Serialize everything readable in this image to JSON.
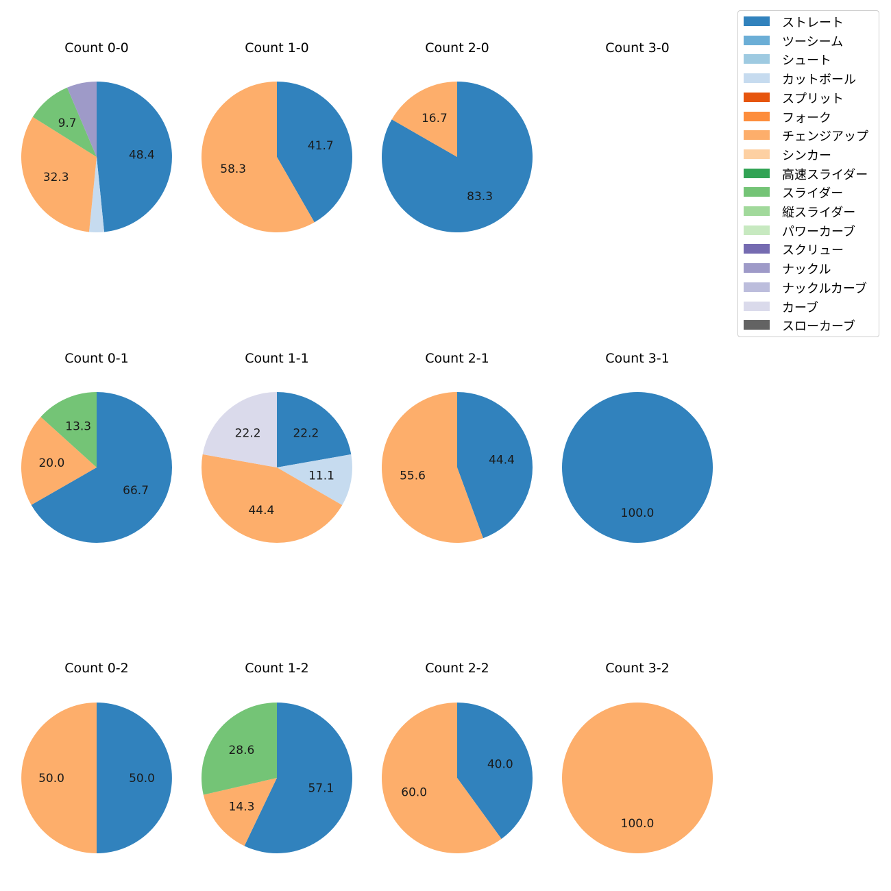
{
  "chart_data": {
    "type": "pie",
    "legend": {
      "placement": "top-right",
      "entries": [
        {
          "name": "ストレート",
          "color": "#3182bd"
        },
        {
          "name": "ツーシーム",
          "color": "#6baed6"
        },
        {
          "name": "シュート",
          "color": "#9ecae1"
        },
        {
          "name": "カットボール",
          "color": "#c6dbef"
        },
        {
          "name": "スプリット",
          "color": "#e6550d"
        },
        {
          "name": "フォーク",
          "color": "#fd8d3c"
        },
        {
          "name": "チェンジアップ",
          "color": "#fdae6b"
        },
        {
          "name": "シンカー",
          "color": "#fdd0a2"
        },
        {
          "name": "高速スライダー",
          "color": "#31a354"
        },
        {
          "name": "スライダー",
          "color": "#74c476"
        },
        {
          "name": "縦スライダー",
          "color": "#a1d99b"
        },
        {
          "name": "パワーカーブ",
          "color": "#c7e9c0"
        },
        {
          "name": "スクリュー",
          "color": "#756bb1"
        },
        {
          "name": "ナックル",
          "color": "#9e9ac8"
        },
        {
          "name": "ナックルカーブ",
          "color": "#bcbddc"
        },
        {
          "name": "カーブ",
          "color": "#dadaeb"
        },
        {
          "name": "スローカーブ",
          "color": "#636363"
        }
      ]
    },
    "charts": [
      {
        "title": "Count 0-0",
        "slices": [
          {
            "pitch": "ストレート",
            "value": 48.4,
            "label": "48.4"
          },
          {
            "pitch": "カットボール",
            "value": 3.2,
            "label": ""
          },
          {
            "pitch": "チェンジアップ",
            "value": 32.3,
            "label": "32.3"
          },
          {
            "pitch": "スライダー",
            "value": 9.7,
            "label": "9.7"
          },
          {
            "pitch": "ナックル",
            "value": 6.4,
            "label": ""
          }
        ]
      },
      {
        "title": "Count 1-0",
        "slices": [
          {
            "pitch": "ストレート",
            "value": 41.7,
            "label": "41.7"
          },
          {
            "pitch": "チェンジアップ",
            "value": 58.3,
            "label": "58.3"
          }
        ]
      },
      {
        "title": "Count 2-0",
        "slices": [
          {
            "pitch": "ストレート",
            "value": 83.3,
            "label": "83.3"
          },
          {
            "pitch": "チェンジアップ",
            "value": 16.7,
            "label": "16.7"
          }
        ]
      },
      {
        "title": "Count 3-0",
        "slices": []
      },
      {
        "title": "Count 0-1",
        "slices": [
          {
            "pitch": "ストレート",
            "value": 66.7,
            "label": "66.7"
          },
          {
            "pitch": "チェンジアップ",
            "value": 20.0,
            "label": "20.0"
          },
          {
            "pitch": "スライダー",
            "value": 13.3,
            "label": "13.3"
          }
        ]
      },
      {
        "title": "Count 1-1",
        "slices": [
          {
            "pitch": "ストレート",
            "value": 22.2,
            "label": "22.2"
          },
          {
            "pitch": "カットボール",
            "value": 11.1,
            "label": "11.1"
          },
          {
            "pitch": "チェンジアップ",
            "value": 44.4,
            "label": "44.4"
          },
          {
            "pitch": "カーブ",
            "value": 22.2,
            "label": "22.2"
          }
        ]
      },
      {
        "title": "Count 2-1",
        "slices": [
          {
            "pitch": "ストレート",
            "value": 44.4,
            "label": "44.4"
          },
          {
            "pitch": "チェンジアップ",
            "value": 55.6,
            "label": "55.6"
          }
        ]
      },
      {
        "title": "Count 3-1",
        "slices": [
          {
            "pitch": "ストレート",
            "value": 100.0,
            "label": "100.0"
          }
        ]
      },
      {
        "title": "Count 0-2",
        "slices": [
          {
            "pitch": "ストレート",
            "value": 50.0,
            "label": "50.0"
          },
          {
            "pitch": "チェンジアップ",
            "value": 50.0,
            "label": "50.0"
          }
        ]
      },
      {
        "title": "Count 1-2",
        "slices": [
          {
            "pitch": "ストレート",
            "value": 57.1,
            "label": "57.1"
          },
          {
            "pitch": "チェンジアップ",
            "value": 14.3,
            "label": "14.3"
          },
          {
            "pitch": "スライダー",
            "value": 28.6,
            "label": "28.6"
          }
        ]
      },
      {
        "title": "Count 2-2",
        "slices": [
          {
            "pitch": "ストレート",
            "value": 40.0,
            "label": "40.0"
          },
          {
            "pitch": "チェンジアップ",
            "value": 60.0,
            "label": "60.0"
          }
        ]
      },
      {
        "title": "Count 3-2",
        "slices": [
          {
            "pitch": "チェンジアップ",
            "value": 100.0,
            "label": "100.0"
          }
        ]
      }
    ]
  }
}
